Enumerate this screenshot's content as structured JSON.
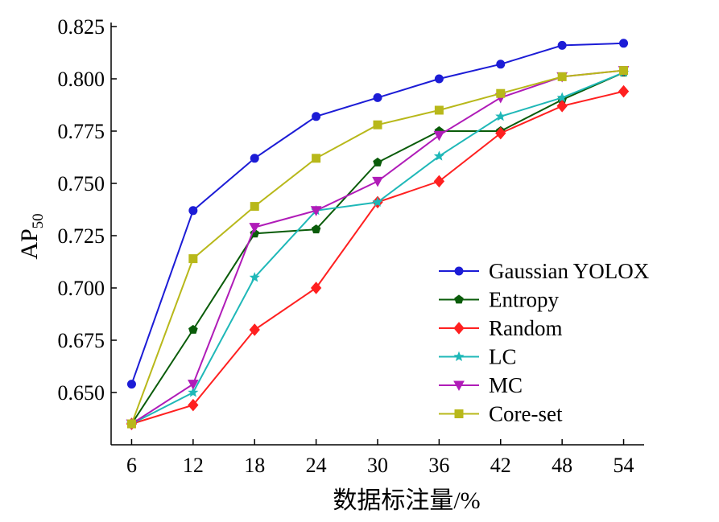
{
  "chart_data": {
    "type": "line",
    "xlabel": "数据标注量/%",
    "ylabel_main": "AP",
    "ylabel_sub": "50",
    "x": [
      6,
      12,
      18,
      24,
      30,
      36,
      42,
      48,
      54
    ],
    "x_ticks": [
      "6",
      "12",
      "18",
      "24",
      "30",
      "36",
      "42",
      "48",
      "54"
    ],
    "y_ticks": [
      "0.650",
      "0.675",
      "0.700",
      "0.725",
      "0.750",
      "0.775",
      "0.800",
      "0.825"
    ],
    "ylim": [
      0.625,
      0.825
    ],
    "xlim": [
      4,
      56
    ],
    "grid": false,
    "legend_position": "bottom-right",
    "series": [
      {
        "name": "Gaussian YOLOX",
        "color": "#1c1cd6",
        "marker": "circle",
        "values": [
          0.654,
          0.737,
          0.762,
          0.782,
          0.791,
          0.8,
          0.807,
          0.816,
          0.817
        ]
      },
      {
        "name": "Entropy",
        "color": "#0a5c0a",
        "marker": "pentagon",
        "values": [
          0.635,
          0.68,
          0.726,
          0.728,
          0.76,
          0.775,
          0.775,
          0.79,
          0.803
        ]
      },
      {
        "name": "Random",
        "color": "#ff2020",
        "marker": "diamond",
        "values": [
          0.635,
          0.644,
          0.68,
          0.7,
          0.741,
          0.751,
          0.774,
          0.787,
          0.794
        ]
      },
      {
        "name": "LC",
        "color": "#1fb8b8",
        "marker": "star",
        "values": [
          0.635,
          0.65,
          0.705,
          0.737,
          0.741,
          0.763,
          0.782,
          0.791,
          0.803
        ]
      },
      {
        "name": "MC",
        "color": "#b01cb8",
        "marker": "triangle-down",
        "values": [
          0.635,
          0.654,
          0.729,
          0.737,
          0.751,
          0.773,
          0.791,
          0.801,
          0.804
        ]
      },
      {
        "name": "Core-set",
        "color": "#b8b81a",
        "marker": "square",
        "values": [
          0.635,
          0.714,
          0.739,
          0.762,
          0.778,
          0.785,
          0.793,
          0.801,
          0.804
        ]
      }
    ]
  }
}
